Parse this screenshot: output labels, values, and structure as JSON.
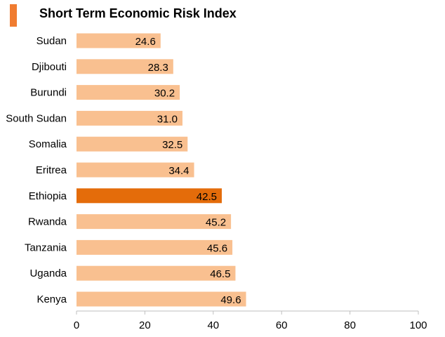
{
  "chart_data": {
    "type": "bar",
    "orientation": "horizontal",
    "title": "Short Term Economic Risk Index",
    "categories": [
      "Sudan",
      "Djibouti",
      "Burundi",
      "South Sudan",
      "Somalia",
      "Eritrea",
      "Ethiopia",
      "Rwanda",
      "Tanzania",
      "Uganda",
      "Kenya"
    ],
    "values": [
      24.6,
      28.3,
      30.2,
      31.0,
      32.5,
      34.4,
      42.5,
      45.2,
      45.6,
      46.5,
      49.6
    ],
    "value_labels": [
      "24.6",
      "28.3",
      "30.2",
      "31.0",
      "32.5",
      "34.4",
      "42.5",
      "45.2",
      "45.6",
      "46.5",
      "49.6"
    ],
    "highlight_index": 6,
    "xlim": [
      0,
      100
    ],
    "xticks": [
      "0",
      "20",
      "40",
      "60",
      "80",
      "100"
    ],
    "xlabel": "",
    "ylabel": "",
    "grid": false,
    "colors": {
      "bar": "#f9c090",
      "highlight": "#e46c0a",
      "accent": "#f07c30",
      "axis": "#bfbfbf"
    }
  }
}
